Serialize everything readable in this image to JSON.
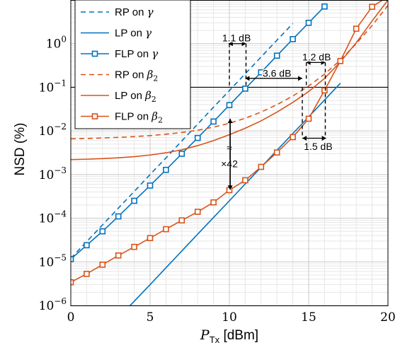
{
  "chart_data": {
    "type": "line",
    "xlabel": "P_Tx [dBm]",
    "xlabel_main": "P",
    "xlabel_sub": "Tx",
    "xlabel_unit": " [dBm]",
    "ylabel": "NSD (%)",
    "xlim": [
      0,
      20
    ],
    "ylim_log10": [
      -6,
      1
    ],
    "y_scale": "log",
    "grid": true,
    "x_ticks": [
      0,
      5,
      10,
      15,
      20
    ],
    "y_ticks": [
      {
        "base": "10",
        "exp": "−6",
        "value": 1e-06
      },
      {
        "base": "10",
        "exp": "−5",
        "value": 1e-05
      },
      {
        "base": "10",
        "exp": "−4",
        "value": 0.0001
      },
      {
        "base": "10",
        "exp": "−3",
        "value": 0.001
      },
      {
        "base": "10",
        "exp": "−2",
        "value": 0.01
      },
      {
        "base": "10",
        "exp": "−1",
        "value": 0.1
      },
      {
        "base": "10",
        "exp": "0",
        "value": 1
      }
    ],
    "reference_line_y": 0.1,
    "legend_position": "top-left",
    "series": [
      {
        "name": "RP on γ",
        "legend_main": "RP on ",
        "legend_sym": "γ",
        "legend_sub": "",
        "color": "#0072bd",
        "style": "dashed",
        "marker": "none",
        "x": [
          0,
          1,
          2,
          3,
          4,
          5,
          6,
          7,
          8,
          9,
          10,
          11,
          12,
          13,
          14
        ],
        "y": [
          1.2e-05,
          2.9e-05,
          7e-05,
          0.00017,
          0.00041,
          0.001,
          0.0024,
          0.0059,
          0.0143,
          0.035,
          0.084,
          0.204,
          0.495,
          1.2,
          2.9
        ]
      },
      {
        "name": "LP on γ",
        "legend_main": "LP on ",
        "legend_sym": "γ",
        "legend_sub": "",
        "color": "#0072bd",
        "style": "solid",
        "marker": "none",
        "x": [
          3,
          4,
          5,
          6,
          7,
          8,
          9,
          10,
          11,
          12,
          13,
          14,
          15,
          16,
          17
        ],
        "y": [
          5.2e-07,
          1.25e-06,
          3e-06,
          7.3e-06,
          1.77e-05,
          4.3e-05,
          0.000104,
          0.00025,
          0.00061,
          0.00147,
          0.0036,
          0.0087,
          0.021,
          0.051,
          0.124
        ]
      },
      {
        "name": "FLP on γ",
        "legend_main": "FLP on ",
        "legend_sym": "γ",
        "legend_sub": "",
        "color": "#0072bd",
        "style": "solid",
        "marker": "square",
        "x": [
          0,
          1,
          2,
          3,
          4,
          5,
          6,
          7,
          8,
          9,
          10,
          11,
          12,
          13,
          14,
          15,
          16
        ],
        "y": [
          1.15e-05,
          2.4e-05,
          5e-05,
          0.00011,
          0.00025,
          0.00056,
          0.00128,
          0.003,
          0.0069,
          0.0164,
          0.039,
          0.093,
          0.22,
          0.53,
          1.27,
          3.0,
          7.1
        ]
      },
      {
        "name": "RP on β2",
        "legend_main": "RP on ",
        "legend_sym": "β",
        "legend_sub": "2",
        "color": "#d95319",
        "style": "dashed",
        "marker": "none",
        "x": [
          0,
          1,
          2,
          3,
          4,
          5,
          6,
          7,
          8,
          9,
          10,
          11,
          12,
          13,
          14,
          15,
          16,
          17,
          18,
          19,
          20
        ],
        "y": [
          0.0066,
          0.0067,
          0.0069,
          0.0071,
          0.0074,
          0.0078,
          0.0084,
          0.0092,
          0.0104,
          0.0122,
          0.015,
          0.0195,
          0.027,
          0.04,
          0.063,
          0.107,
          0.2,
          0.42,
          1.0,
          2.6,
          7.5
        ]
      },
      {
        "name": "LP on β2",
        "legend_main": "LP on ",
        "legend_sym": "β",
        "legend_sub": "2",
        "color": "#d95319",
        "style": "solid",
        "marker": "none",
        "x": [
          0,
          1,
          2,
          3,
          4,
          5,
          6,
          7,
          8,
          9,
          10,
          11,
          12,
          13,
          14,
          15,
          16,
          17,
          18,
          19,
          20
        ],
        "y": [
          0.0022,
          0.00225,
          0.00232,
          0.00242,
          0.00257,
          0.0028,
          0.00315,
          0.0037,
          0.0046,
          0.006,
          0.0082,
          0.0115,
          0.017,
          0.027,
          0.045,
          0.08,
          0.16,
          0.38,
          1.05,
          3.3,
          10
        ]
      },
      {
        "name": "FLP on β2",
        "legend_main": "FLP on ",
        "legend_sym": "β",
        "legend_sub": "2",
        "color": "#d95319",
        "style": "solid",
        "marker": "square",
        "x": [
          0,
          1,
          2,
          3,
          4,
          5,
          6,
          7,
          8,
          9,
          10,
          11,
          12,
          13,
          14,
          15,
          16,
          17,
          18,
          19,
          20
        ],
        "y": [
          3.4e-06,
          5.3e-06,
          8.6e-06,
          1.4e-05,
          2.2e-05,
          3.5e-05,
          5.6e-05,
          8.9e-05,
          0.00014,
          0.00023,
          0.00044,
          0.00074,
          0.0015,
          0.0032,
          0.0072,
          0.019,
          0.085,
          0.4,
          2.2,
          7.0,
          12
        ]
      }
    ],
    "annotations": [
      {
        "label": "1.1 dB",
        "kind": "span",
        "x1": 9.95,
        "x2": 11.05,
        "y": 1.0,
        "text_x": 10.45,
        "text_y": 1.3
      },
      {
        "label": "1.2 dB",
        "kind": "span",
        "x1": 14.85,
        "x2": 16.05,
        "y": 0.37,
        "text_x": 15.5,
        "text_y": 0.47
      },
      {
        "label": "3.6 dB",
        "kind": "span",
        "x1": 11.0,
        "x2": 14.6,
        "y": 0.16,
        "text_x": 13.0,
        "text_y": 0.2
      },
      {
        "label": "1.5 dB",
        "kind": "span",
        "x1": 14.6,
        "x2": 16.1,
        "y": 0.0068,
        "text_x": 15.6,
        "text_y": 0.0042
      },
      {
        "label": "≈",
        "kind": "text",
        "text_x": 10.0,
        "text_y": 0.0039
      },
      {
        "label": "×42",
        "kind": "text",
        "text_x": 10.0,
        "text_y": 0.0017
      },
      {
        "label": "",
        "kind": "vspan",
        "x": 10.05,
        "y1": 0.00045,
        "y2": 0.019
      }
    ],
    "dashed_verticals": [
      {
        "x": 10.0,
        "y_top": 1.0,
        "y_bot": 0.1
      },
      {
        "x": 11.05,
        "y_top": 1.0,
        "y_bot": 0.1
      },
      {
        "x": 14.85,
        "y_top": 0.37,
        "y_bot": 0.1
      },
      {
        "x": 16.05,
        "y_top": 0.37,
        "y_bot": 0.1
      },
      {
        "x": 14.6,
        "y_top": 0.1,
        "y_bot": 0.0068
      },
      {
        "x": 16.05,
        "y_top": 0.1,
        "y_bot": 0.0068
      }
    ]
  }
}
